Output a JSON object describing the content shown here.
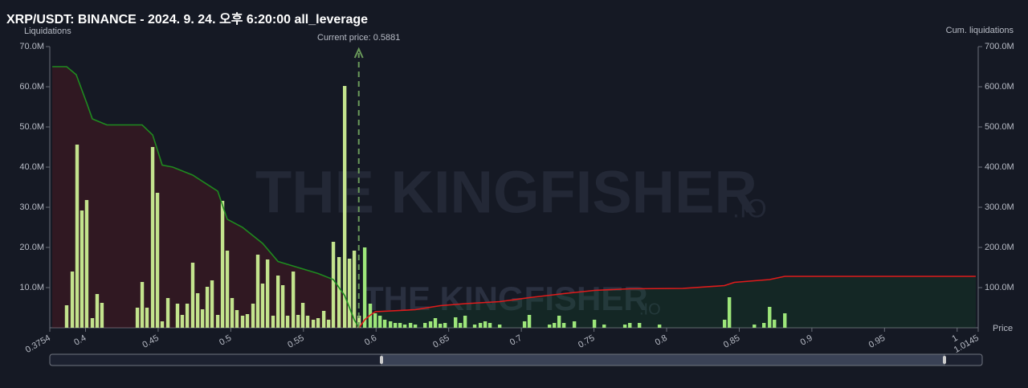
{
  "chart_data": {
    "type": "bar",
    "title": "XRP/USDT: BINANCE - 2024. 9. 24. 오후 6:20:00 all_leverage",
    "y_label": "Liquidations",
    "y2_label": "Cum. liquidations",
    "x_label": "Price",
    "watermark": [
      "THE KINGFISHER",
      ".IO"
    ],
    "current_price": {
      "value": 0.5881,
      "label": "Current price: 0.5881",
      "color": "#6a9a5a"
    },
    "xlim": [
      0.3754,
      1.0145
    ],
    "xticks": [
      0.3754,
      0.4,
      0.45,
      0.5,
      0.55,
      0.6,
      0.65,
      0.7,
      0.75,
      0.8,
      0.85,
      0.9,
      0.95,
      1,
      1.0145
    ],
    "ylim": [
      0,
      70
    ],
    "yticks": [
      {
        "value": 10,
        "label": "10.0M"
      },
      {
        "value": 20,
        "label": "20.0M"
      },
      {
        "value": 30,
        "label": "30.0M"
      },
      {
        "value": 40,
        "label": "40.0M"
      },
      {
        "value": 50,
        "label": "50.0M"
      },
      {
        "value": 60,
        "label": "60.0M"
      },
      {
        "value": 70,
        "label": "70.0M"
      }
    ],
    "y2lim": [
      0,
      700
    ],
    "y2ticks": [
      {
        "value": 100,
        "label": "100.0M"
      },
      {
        "value": 200,
        "label": "200.0M"
      },
      {
        "value": 300,
        "label": "300.0M"
      },
      {
        "value": 400,
        "label": "400.0M"
      },
      {
        "value": 500,
        "label": "500.0M"
      },
      {
        "value": 600,
        "label": "600.0M"
      },
      {
        "value": 700,
        "label": "700.0M"
      }
    ],
    "series": [
      {
        "color": "#c3e38d",
        "x": [
          0.387,
          0.3909,
          0.3942,
          0.3975,
          0.4008,
          0.4047,
          0.408,
          0.4113,
          0.4357,
          0.439,
          0.4423,
          0.4462,
          0.4495,
          0.4528,
          0.4567,
          0.4633,
          0.4666,
          0.47,
          0.4738,
          0.4772,
          0.4805,
          0.4838,
          0.4871,
          0.491,
          0.4943,
          0.4976,
          0.5009,
          0.5042,
          0.5081,
          0.5114,
          0.5153,
          0.5186,
          0.5219,
          0.5253,
          0.5291,
          0.5325,
          0.5358,
          0.5391,
          0.543,
          0.5463,
          0.5496,
          0.5529,
          0.5568,
          0.5601,
          0.564,
          0.5673,
          0.5706,
          0.5745,
          0.5784,
          0.5817,
          0.585,
          0.5883
        ],
        "values": [
          5.6,
          14,
          45.6,
          29.2,
          31.8,
          2.4,
          8.4,
          6.2,
          5,
          11.4,
          5,
          45,
          33.6,
          1.6,
          7.4,
          6,
          3.2,
          6,
          16.2,
          8.6,
          4.6,
          10.2,
          11.8,
          3.2,
          31.6,
          19.2,
          7.4,
          4.4,
          3,
          3.4,
          6,
          18.2,
          11,
          17,
          3,
          13,
          10.6,
          3,
          14,
          3.2,
          6.2,
          3,
          2,
          2.4,
          4.2,
          2,
          21.4,
          17.6,
          60.2,
          17.2,
          19.2,
          3
        ]
      },
      {
        "color": "#9de67a",
        "x": [
          0.5922,
          0.596,
          0.5994,
          0.6027,
          0.606,
          0.6099,
          0.6132,
          0.6165,
          0.6198,
          0.6237,
          0.627,
          0.6337,
          0.6375,
          0.6408,
          0.6442,
          0.6475,
          0.6547,
          0.658,
          0.6613,
          0.6679,
          0.6718,
          0.6751,
          0.6784,
          0.6851,
          0.7022,
          0.7055,
          0.7194,
          0.7227,
          0.726,
          0.7293,
          0.7365,
          0.7503,
          0.757,
          0.7713,
          0.7747,
          0.7813,
          0.7951,
          0.8399,
          0.8432,
          0.8604,
          0.867,
          0.8709,
          0.8742,
          0.8814
        ],
        "values": [
          20,
          6,
          3.6,
          3,
          2,
          1.6,
          1.2,
          1.2,
          0.8,
          1.2,
          0.8,
          1.2,
          1.6,
          2.4,
          1,
          1.2,
          2.6,
          1.2,
          3,
          0.8,
          1.2,
          1.6,
          1.2,
          0.8,
          1.6,
          3.2,
          0.8,
          1.2,
          3,
          1.2,
          1.6,
          2,
          0.8,
          0.8,
          1.2,
          1.2,
          0.8,
          2,
          7.6,
          0.8,
          1.2,
          5.2,
          2,
          3.6
        ]
      }
    ],
    "cum_series": [
      {
        "color": "#1f8a1f",
        "fill": "rgba(120,20,30,0.28)",
        "x": [
          0.3771,
          0.387,
          0.3936,
          0.4008,
          0.4047,
          0.408,
          0.4147,
          0.439,
          0.4462,
          0.4528,
          0.46,
          0.4738,
          0.491,
          0.4976,
          0.5081,
          0.5219,
          0.5325,
          0.5463,
          0.5601,
          0.5706,
          0.5784,
          0.585,
          0.5883
        ],
        "values": [
          650,
          650,
          630,
          560,
          520,
          515,
          505,
          505,
          480,
          405,
          400,
          380,
          340,
          270,
          250,
          210,
          165,
          150,
          135,
          120,
          80,
          20,
          0
        ]
      },
      {
        "color": "#e01b1b",
        "fill": "rgba(20,90,40,0.22)",
        "x": [
          0.5883,
          0.5922,
          0.5955,
          0.5994,
          0.627,
          0.6442,
          0.6613,
          0.6851,
          0.7055,
          0.7293,
          0.7503,
          0.7747,
          0.8112,
          0.8399,
          0.8466,
          0.8709,
          0.8814,
          1.0128
        ],
        "values": [
          0,
          20,
          30,
          40,
          45,
          55,
          60,
          65,
          75,
          85,
          93,
          97,
          98,
          105,
          113,
          120,
          128,
          128
        ]
      }
    ]
  }
}
